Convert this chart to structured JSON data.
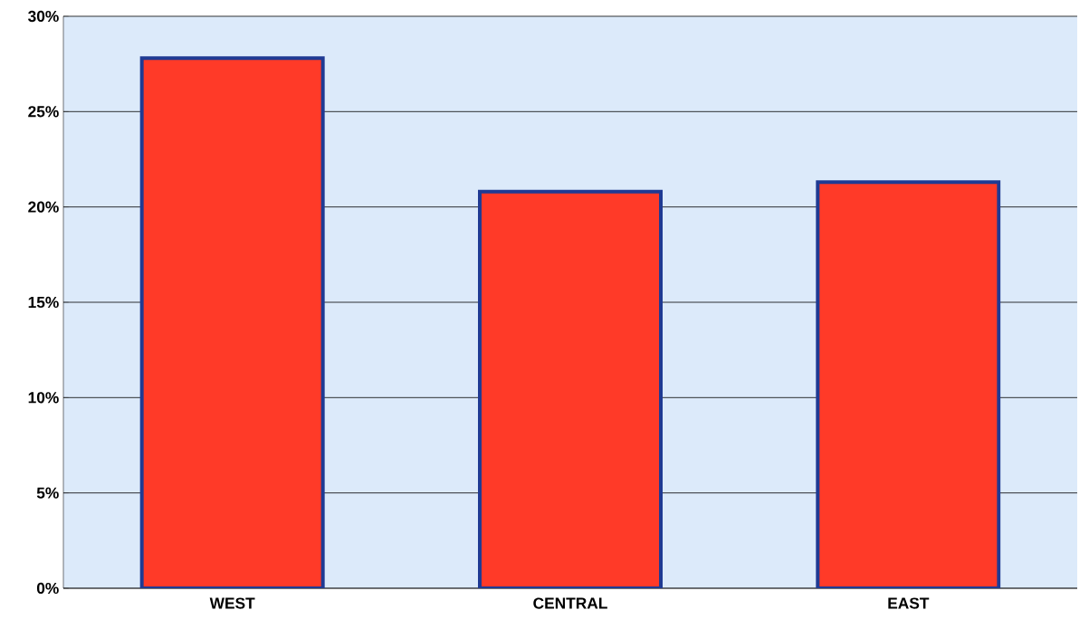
{
  "chart_data": {
    "type": "bar",
    "categories": [
      "WEST",
      "CENTRAL",
      "EAST"
    ],
    "values": [
      27.8,
      20.8,
      21.3
    ],
    "color": "#ff3a28",
    "ylim": [
      0,
      30
    ],
    "yticks": [
      {
        "value": 0,
        "label": "0%"
      },
      {
        "value": 5,
        "label": "5%"
      },
      {
        "value": 10,
        "label": "10%"
      },
      {
        "value": 15,
        "label": "15%"
      },
      {
        "value": 20,
        "label": "20%"
      },
      {
        "value": 25,
        "label": "25%"
      },
      {
        "value": 30,
        "label": "30%"
      }
    ],
    "grid": "y"
  }
}
